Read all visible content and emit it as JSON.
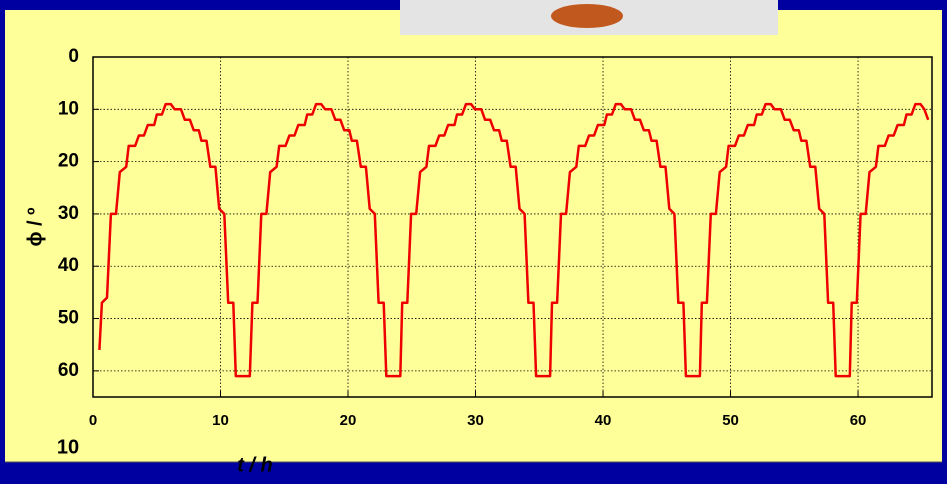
{
  "chart_data": {
    "type": "line",
    "x_label": "t / h",
    "y_label": "ϕ / º",
    "annotation": "10",
    "xlim": [
      0,
      65.8
    ],
    "xticks": [
      0,
      10,
      20,
      30,
      40,
      50,
      60
    ],
    "ylim": [
      0,
      65
    ],
    "yticks": [
      0,
      10,
      20,
      30,
      40,
      50,
      60
    ],
    "y_inverted": true,
    "grid": true,
    "series": [
      {
        "color": "#ee0000",
        "x": [
          0.5,
          0.7,
          1.1,
          1.4,
          1.8,
          2.1,
          2.6,
          2.8,
          3.3,
          3.6,
          4.0,
          4.3,
          4.8,
          5.0,
          5.4,
          5.7,
          6.1,
          6.4,
          6.9,
          7.2,
          7.6,
          7.9,
          8.3,
          8.5,
          8.9,
          9.2,
          9.6,
          9.9,
          10.3,
          10.6,
          11.0,
          11.2,
          12.3,
          12.5,
          12.9,
          13.2,
          13.6,
          13.9,
          14.4,
          14.6,
          15.1,
          15.4,
          15.8,
          16.1,
          16.6,
          16.8,
          17.2,
          17.5,
          17.9,
          18.2,
          18.7,
          19.0,
          19.4,
          19.7,
          20.1,
          20.3,
          20.7,
          21.0,
          21.4,
          21.7,
          22.1,
          22.4,
          22.8,
          23.0,
          24.1,
          24.25,
          24.65,
          24.95,
          25.35,
          25.65,
          26.15,
          26.35,
          26.85,
          27.15,
          27.55,
          27.85,
          28.35,
          28.55,
          28.95,
          29.25,
          29.65,
          29.95,
          30.45,
          30.75,
          31.15,
          31.45,
          31.85,
          32.05,
          32.45,
          32.75,
          33.15,
          33.45,
          33.85,
          34.15,
          34.55,
          34.75,
          35.85,
          36.0,
          36.4,
          36.7,
          37.1,
          37.4,
          37.9,
          38.1,
          38.6,
          38.9,
          39.3,
          39.6,
          40.1,
          40.3,
          40.7,
          41.0,
          41.4,
          41.7,
          42.2,
          42.5,
          42.9,
          43.2,
          43.6,
          43.8,
          44.2,
          44.5,
          44.9,
          45.2,
          45.6,
          45.9,
          46.3,
          46.5,
          47.6,
          47.75,
          48.15,
          48.45,
          48.85,
          49.15,
          49.65,
          49.85,
          50.35,
          50.65,
          51.05,
          51.35,
          51.85,
          52.05,
          52.45,
          52.75,
          53.15,
          53.45,
          53.95,
          54.25,
          54.65,
          54.95,
          55.35,
          55.55,
          55.95,
          56.25,
          56.65,
          56.95,
          57.35,
          57.65,
          58.05,
          58.25,
          59.35,
          59.5,
          59.9,
          60.2,
          60.6,
          60.9,
          61.4,
          61.6,
          62.1,
          62.4,
          62.8,
          63.1,
          63.6,
          63.8,
          64.2,
          64.5,
          64.9,
          65.2,
          65.5
        ],
        "values": [
          56,
          47,
          46,
          30,
          30,
          22,
          21,
          17,
          17,
          15,
          15,
          13,
          13,
          11,
          11,
          9,
          9,
          10,
          10,
          12,
          12,
          14,
          14,
          16,
          16,
          21,
          21,
          29,
          30,
          47,
          47,
          61,
          61,
          47,
          47,
          30,
          30,
          22,
          21,
          17,
          17,
          15,
          15,
          13,
          13,
          11,
          11,
          9,
          9,
          10,
          10,
          12,
          12,
          14,
          14,
          16,
          16,
          21,
          21,
          29,
          30,
          47,
          47,
          61,
          61,
          47,
          47,
          30,
          30,
          22,
          21,
          17,
          17,
          15,
          15,
          13,
          13,
          11,
          11,
          9,
          9,
          10,
          10,
          12,
          12,
          14,
          14,
          16,
          16,
          21,
          21,
          29,
          30,
          47,
          47,
          61,
          61,
          47,
          47,
          30,
          30,
          22,
          21,
          17,
          17,
          15,
          15,
          13,
          13,
          11,
          11,
          9,
          9,
          10,
          10,
          12,
          12,
          14,
          14,
          16,
          16,
          21,
          21,
          29,
          30,
          47,
          47,
          61,
          61,
          47,
          47,
          30,
          30,
          22,
          21,
          17,
          17,
          15,
          15,
          13,
          13,
          11,
          11,
          9,
          9,
          10,
          10,
          12,
          12,
          14,
          14,
          16,
          16,
          21,
          21,
          29,
          30,
          47,
          47,
          61,
          61,
          47,
          47,
          30,
          30,
          22,
          21,
          17,
          17,
          15,
          15,
          13,
          13,
          11,
          11,
          9,
          9,
          10,
          12
        ]
      }
    ]
  }
}
